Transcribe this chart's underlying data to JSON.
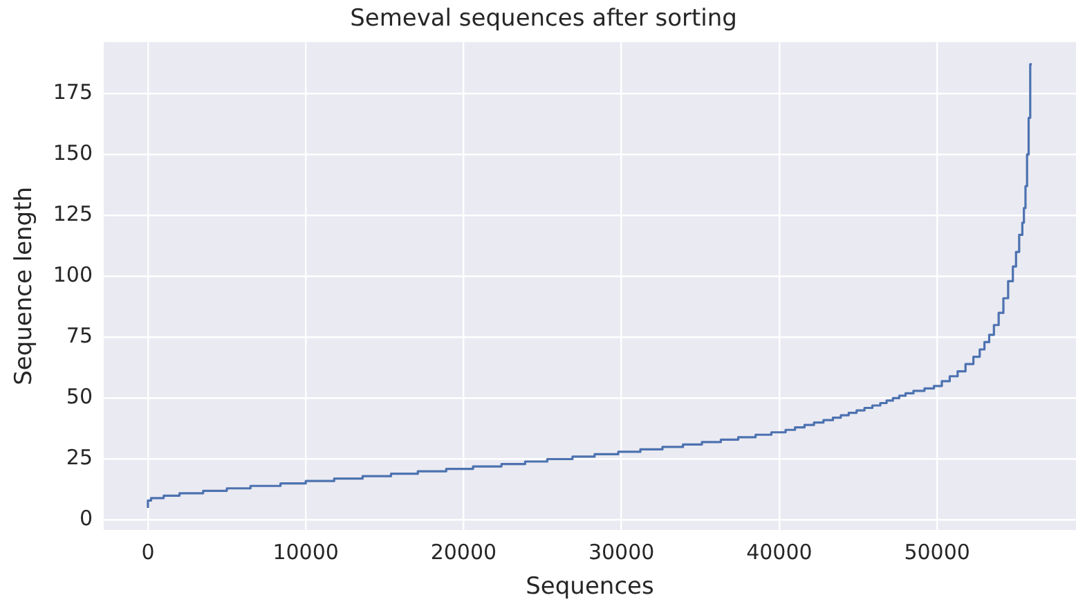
{
  "chart_data": {
    "type": "step",
    "title": "Semeval sequences after sorting",
    "xlabel": "Sequences",
    "ylabel": "Sequence length",
    "x": [
      0,
      200,
      1000,
      2000,
      3500,
      5000,
      6500,
      8400,
      10000,
      11800,
      13600,
      15400,
      17100,
      18900,
      20600,
      22400,
      23900,
      25300,
      26900,
      28300,
      29800,
      31200,
      32600,
      33900,
      35100,
      36300,
      37400,
      38500,
      39500,
      40400,
      41000,
      41600,
      42200,
      42800,
      43400,
      43900,
      44400,
      44900,
      45400,
      45900,
      46400,
      46800,
      47200,
      47600,
      48000,
      48500,
      49200,
      49800,
      50300,
      50800,
      51300,
      51800,
      52300,
      52700,
      53000,
      53300,
      53600,
      53900,
      54200,
      54500,
      54800,
      55000,
      55200,
      55400,
      55500,
      55600,
      55700,
      55800,
      55900,
      56000
    ],
    "series": [
      {
        "color": "#4c72b0",
        "values": [
          5,
          8,
          9,
          10,
          11,
          12,
          13,
          14,
          15,
          16,
          17,
          18,
          19,
          20,
          21,
          22,
          23,
          24,
          25,
          26,
          27,
          28,
          29,
          30,
          31,
          32,
          33,
          34,
          35,
          36,
          37,
          38,
          39,
          40,
          41,
          42,
          43,
          44,
          45,
          46,
          47,
          48,
          49,
          50,
          51,
          52,
          53,
          54,
          55,
          57,
          59,
          61,
          64,
          67,
          70,
          73,
          76,
          80,
          85,
          91,
          98,
          104,
          110,
          117,
          122,
          128,
          137,
          150,
          165,
          187
        ]
      }
    ],
    "xlim": [
      -2800,
      58800
    ],
    "xticks": [
      0,
      10000,
      20000,
      30000,
      40000,
      50000
    ],
    "ylim": [
      -4.1,
      196.1
    ],
    "yticks": [
      0,
      25,
      50,
      75,
      100,
      125,
      150,
      175
    ],
    "grid": true,
    "legend": false,
    "line_style": "solid",
    "marker": "none"
  }
}
